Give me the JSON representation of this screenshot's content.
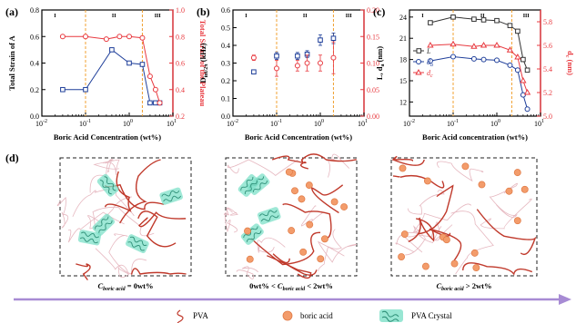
{
  "panels": {
    "a": {
      "letter": "(a)",
      "regions": [
        "I",
        "II",
        "III"
      ]
    },
    "b": {
      "letter": "(b)",
      "regions": [
        "I",
        "II",
        "III"
      ]
    },
    "c": {
      "letter": "(c)",
      "regions": [
        "I",
        "II",
        "III"
      ]
    },
    "d": {
      "letter": "(d)"
    }
  },
  "colors": {
    "black_series": "#1f3f9a",
    "red_series": "#e8393f",
    "divider": "#f0a030",
    "chain": "#c0392b",
    "crystal": "#7ee0c8",
    "boric": "#f39c6b",
    "arrow": "#a78bd4"
  },
  "chart_data": [
    {
      "type": "line",
      "panel": "a",
      "xscale": "log",
      "xlim": [
        0.01,
        10
      ],
      "xticks": [
        "10^-2",
        "10^-1",
        "10^0",
        "10^1"
      ],
      "xlabel": "Boric Acid Concentration  (wt%)",
      "ylabel_left": "Total Strain of A",
      "ylim_left": [
        0.0,
        0.8
      ],
      "yticks_left": [
        "0.0",
        "0.2",
        "0.4",
        "0.6",
        "0.8"
      ],
      "ylabel_right": "Total Strain of the Plateau",
      "ylim_right": [
        0.2,
        1.0
      ],
      "yticks_right": [
        "0.2",
        "0.4",
        "0.6",
        "0.8",
        "1.0"
      ],
      "dividers": [
        0.1,
        2.0
      ],
      "series": [
        {
          "axis": "left",
          "marker": "square",
          "x": [
            0.03,
            0.1,
            0.4,
            1.0,
            2.0,
            3.0,
            4.0,
            5.0
          ],
          "y": [
            0.2,
            0.2,
            0.5,
            0.4,
            0.39,
            0.1,
            0.1,
            0.1
          ]
        },
        {
          "axis": "right",
          "marker": "circle",
          "x": [
            0.03,
            0.1,
            0.3,
            0.6,
            1.0,
            2.0,
            3.0,
            4.0,
            5.0
          ],
          "y": [
            0.8,
            0.8,
            0.78,
            0.8,
            0.8,
            0.79,
            0.5,
            0.4,
            0.3
          ]
        }
      ]
    },
    {
      "type": "scatter",
      "panel": "b",
      "xscale": "log",
      "xlim": [
        0.01,
        10
      ],
      "xticks": [
        "10^-2",
        "10^-1",
        "10^0",
        "10^1"
      ],
      "xlabel": "Boric Acid Concentration (wt%)",
      "ylabel_left": "D_int/2π (kHz)",
      "ylim_left": [
        0.0,
        0.6
      ],
      "yticks_left": [
        "0.0",
        "0.1",
        "0.2",
        "0.3",
        "0.4",
        "0.5",
        "0.6"
      ],
      "ylim_right": [
        0.0,
        0.2
      ],
      "yticks_right": [
        "0.00",
        "0.05",
        "0.10",
        "0.15",
        "0.20"
      ],
      "dividers": [
        0.1,
        2.0
      ],
      "series": [
        {
          "axis": "left",
          "marker": "square",
          "x": [
            0.03,
            0.1,
            0.3,
            0.5,
            1.0,
            2.0
          ],
          "y": [
            0.25,
            0.34,
            0.34,
            0.35,
            0.43,
            0.44
          ],
          "err": [
            0.0,
            0.02,
            0.02,
            0.02,
            0.03,
            0.03
          ]
        },
        {
          "axis": "right",
          "marker": "circle",
          "x": [
            0.03,
            0.1,
            0.3,
            0.5,
            1.0,
            2.0
          ],
          "y": [
            0.11,
            0.09,
            0.095,
            0.1,
            0.1,
            0.11
          ],
          "err": [
            0.005,
            0.015,
            0.01,
            0.015,
            0.015,
            0.03
          ]
        }
      ]
    },
    {
      "type": "line",
      "panel": "c",
      "xscale": "log",
      "xlim": [
        0.01,
        10
      ],
      "xticks": [
        "10^-2",
        "10^-1",
        "10^0",
        "10^1"
      ],
      "xlabel": "Boric Acid concentration (wt%)",
      "ylabel_left": "L, d_a (nm)",
      "ylim_left": [
        10,
        25
      ],
      "yticks_left": [
        "12",
        "15",
        "18",
        "21",
        "24"
      ],
      "ylabel_right": "d_c (nm)",
      "ylim_right": [
        5.0,
        5.9
      ],
      "yticks_right": [
        "5.0",
        "5.2",
        "5.4",
        "5.6",
        "5.8"
      ],
      "dividers": [
        0.1,
        2.2
      ],
      "legend": [
        "L",
        "d_a",
        "d_c"
      ],
      "legend_placement": "center-left",
      "series": [
        {
          "name": "L",
          "axis": "left",
          "marker": "square",
          "color": "#333333",
          "x": [
            0.03,
            0.1,
            0.3,
            0.5,
            1.0,
            2.0,
            3.0,
            4.0,
            5.0
          ],
          "y": [
            23.2,
            24.0,
            23.7,
            23.6,
            23.5,
            22.8,
            22.0,
            18.0,
            16.5
          ]
        },
        {
          "name": "d_a",
          "axis": "left",
          "marker": "circle",
          "color": "#1f3f9a",
          "x": [
            0.03,
            0.1,
            0.3,
            0.5,
            1.0,
            2.0,
            3.0,
            4.0,
            5.0
          ],
          "y": [
            17.8,
            18.4,
            18.1,
            18.0,
            17.9,
            17.2,
            16.5,
            13.0,
            11.0
          ]
        },
        {
          "name": "d_c",
          "axis": "right",
          "marker": "triangle",
          "color": "#e8393f",
          "x": [
            0.03,
            0.1,
            0.3,
            0.5,
            1.0,
            2.0,
            3.0,
            4.0,
            5.0
          ],
          "y": [
            5.6,
            5.61,
            5.59,
            5.6,
            5.6,
            5.56,
            5.5,
            5.3,
            5.2
          ]
        }
      ]
    }
  ],
  "schematic": {
    "boxes": [
      {
        "label": "C_boric acid = 0wt%",
        "label_main": "C",
        "label_sub": "boric acid",
        "label_rest": " = 0wt%"
      },
      {
        "label": "0wt% < C_boric acid < 2wt%",
        "label_pre": "0wt% <",
        "label_main": "C",
        "label_sub": "boric acid",
        "label_rest": " < 2wt%"
      },
      {
        "label": "C_boric acid > 2wt%",
        "label_main": "C",
        "label_sub": "boric acid",
        "label_rest": " > 2wt%"
      }
    ],
    "legend": {
      "pva": "PVA",
      "boric": "boric acid",
      "crystal": "PVA Crystal"
    }
  }
}
